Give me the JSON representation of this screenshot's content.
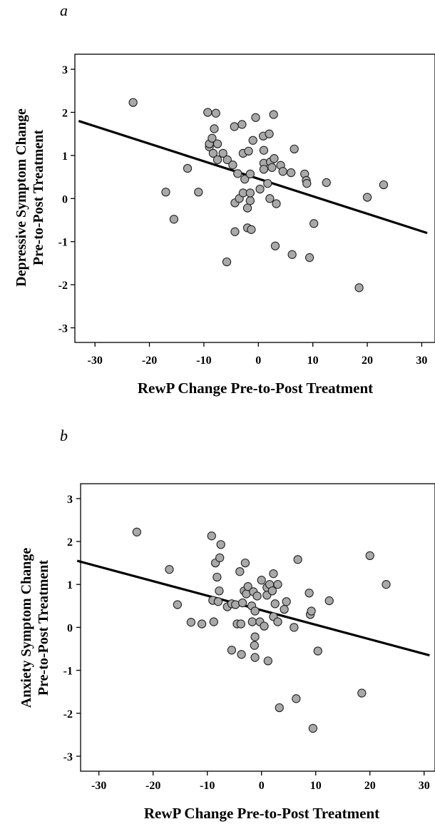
{
  "chart_data": [
    {
      "type": "scatter",
      "panel_label": "a",
      "xlabel": "RewP Change Pre-to-Post Treatment",
      "ylabel_line1": "Depressive Symptom Change",
      "ylabel_line2": "Pre-to-Post Treatment",
      "xlim": [
        -33,
        31
      ],
      "ylim": [
        -3.3,
        3.3
      ],
      "x_ticks": [
        -30,
        -20,
        -10,
        0,
        10,
        20,
        30
      ],
      "y_ticks": [
        3,
        2,
        1,
        0,
        -1,
        -2,
        -3
      ],
      "fit_line": {
        "y_at_xmin": 1.8,
        "y_at_xmax": -0.8
      },
      "points": [
        {
          "x": -23,
          "y": 2.23
        },
        {
          "x": -17,
          "y": 0.15
        },
        {
          "x": -15.5,
          "y": -0.48
        },
        {
          "x": -13,
          "y": 0.7
        },
        {
          "x": -11,
          "y": 0.15
        },
        {
          "x": -9.3,
          "y": 2.0
        },
        {
          "x": -9,
          "y": 1.2
        },
        {
          "x": -9,
          "y": 1.27
        },
        {
          "x": -8.5,
          "y": 1.4
        },
        {
          "x": -8.3,
          "y": 1.05
        },
        {
          "x": -8.1,
          "y": 1.62
        },
        {
          "x": -7.8,
          "y": 1.98
        },
        {
          "x": -7.5,
          "y": 1.27
        },
        {
          "x": -7.5,
          "y": 0.9
        },
        {
          "x": -6.5,
          "y": 1.05
        },
        {
          "x": -5.7,
          "y": 0.9
        },
        {
          "x": -5.8,
          "y": -1.47
        },
        {
          "x": -4.7,
          "y": 0.78
        },
        {
          "x": -4.4,
          "y": 1.67
        },
        {
          "x": -4.3,
          "y": -0.1
        },
        {
          "x": -4.3,
          "y": -0.77
        },
        {
          "x": -3.8,
          "y": 0.58
        },
        {
          "x": -3.5,
          "y": 0.0
        },
        {
          "x": -3.0,
          "y": 1.72
        },
        {
          "x": -2.8,
          "y": 1.05
        },
        {
          "x": -2.8,
          "y": 0.13
        },
        {
          "x": -2.5,
          "y": 0.45
        },
        {
          "x": -2.0,
          "y": -0.22
        },
        {
          "x": -2.0,
          "y": -0.68
        },
        {
          "x": -1.8,
          "y": 1.1
        },
        {
          "x": -1.5,
          "y": -0.05
        },
        {
          "x": -1.5,
          "y": 0.57
        },
        {
          "x": -1.5,
          "y": 0.13
        },
        {
          "x": -1.3,
          "y": -0.72
        },
        {
          "x": -1.0,
          "y": 1.35
        },
        {
          "x": -0.5,
          "y": 1.88
        },
        {
          "x": 0.3,
          "y": 0.22
        },
        {
          "x": 0.9,
          "y": 1.45
        },
        {
          "x": 1.0,
          "y": 0.82
        },
        {
          "x": 1.0,
          "y": 1.12
        },
        {
          "x": 1.0,
          "y": 0.68
        },
        {
          "x": 1.7,
          "y": 0.35
        },
        {
          "x": 2.0,
          "y": 1.5
        },
        {
          "x": 2.1,
          "y": 0.0
        },
        {
          "x": 2.2,
          "y": 0.85
        },
        {
          "x": 2.5,
          "y": 0.72
        },
        {
          "x": 2.8,
          "y": 1.95
        },
        {
          "x": 2.9,
          "y": 0.93
        },
        {
          "x": 3.1,
          "y": -1.1
        },
        {
          "x": 3.3,
          "y": -0.12
        },
        {
          "x": 4.1,
          "y": 0.77
        },
        {
          "x": 4.5,
          "y": 0.63
        },
        {
          "x": 6.0,
          "y": 0.6
        },
        {
          "x": 6.2,
          "y": -1.3
        },
        {
          "x": 6.6,
          "y": 1.15
        },
        {
          "x": 8.5,
          "y": 0.57
        },
        {
          "x": 8.8,
          "y": 0.42
        },
        {
          "x": 8.9,
          "y": 0.35
        },
        {
          "x": 9.4,
          "y": -1.37
        },
        {
          "x": 10.2,
          "y": -0.58
        },
        {
          "x": 12.5,
          "y": 0.37
        },
        {
          "x": 18.5,
          "y": -2.07
        },
        {
          "x": 20.0,
          "y": 0.03
        },
        {
          "x": 23.0,
          "y": 0.32
        }
      ]
    },
    {
      "type": "scatter",
      "panel_label": "b",
      "xlabel": "RewP Change Pre-to-Post Treatment",
      "ylabel_line1": "Anxiety Symptom Change",
      "ylabel_line2": "Pre-to-Post Treatment",
      "xlim": [
        -34,
        31
      ],
      "ylim": [
        -3.3,
        3.3
      ],
      "x_ticks": [
        -30,
        -20,
        -10,
        0,
        10,
        20,
        30
      ],
      "y_ticks": [
        3,
        2,
        1,
        0,
        -1,
        -2,
        -3
      ],
      "fit_line": {
        "y_at_xmin": 1.55,
        "y_at_xmax": -0.65
      },
      "points": [
        {
          "x": -23,
          "y": 2.22
        },
        {
          "x": -17,
          "y": 1.35
        },
        {
          "x": -15.5,
          "y": 0.53
        },
        {
          "x": -13,
          "y": 0.12
        },
        {
          "x": -11,
          "y": 0.08
        },
        {
          "x": -9.2,
          "y": 2.13
        },
        {
          "x": -9,
          "y": 0.63
        },
        {
          "x": -8.8,
          "y": 0.13
        },
        {
          "x": -8.5,
          "y": 1.5
        },
        {
          "x": -8.2,
          "y": 1.17
        },
        {
          "x": -8.0,
          "y": 0.6
        },
        {
          "x": -7.7,
          "y": 1.62
        },
        {
          "x": -7.5,
          "y": 1.93
        },
        {
          "x": -7.8,
          "y": 0.85
        },
        {
          "x": -6.3,
          "y": 0.48
        },
        {
          "x": -5.5,
          "y": 0.55
        },
        {
          "x": -5.5,
          "y": -0.53
        },
        {
          "x": -4.8,
          "y": 0.53
        },
        {
          "x": -4.5,
          "y": 0.08
        },
        {
          "x": -4.0,
          "y": 1.3
        },
        {
          "x": -3.8,
          "y": 0.08
        },
        {
          "x": -3.7,
          "y": -0.63
        },
        {
          "x": -3.5,
          "y": 0.57
        },
        {
          "x": -3.2,
          "y": 0.85
        },
        {
          "x": -3.0,
          "y": 1.5
        },
        {
          "x": -2.8,
          "y": 0.78
        },
        {
          "x": -2.5,
          "y": 0.95
        },
        {
          "x": -1.8,
          "y": 0.5
        },
        {
          "x": -1.7,
          "y": 0.13
        },
        {
          "x": -1.5,
          "y": 0.83
        },
        {
          "x": -1.3,
          "y": -0.42
        },
        {
          "x": -1.2,
          "y": 0.38
        },
        {
          "x": -1.2,
          "y": -0.22
        },
        {
          "x": -1.2,
          "y": -0.7
        },
        {
          "x": -0.8,
          "y": 0.73
        },
        {
          "x": -0.3,
          "y": 0.13
        },
        {
          "x": 0.0,
          "y": 1.1
        },
        {
          "x": 0.5,
          "y": 0.03
        },
        {
          "x": 1.0,
          "y": 0.75
        },
        {
          "x": 1.0,
          "y": 0.93
        },
        {
          "x": 1.2,
          "y": -0.78
        },
        {
          "x": 1.5,
          "y": 1.0
        },
        {
          "x": 2.0,
          "y": 0.85
        },
        {
          "x": 2.2,
          "y": 1.25
        },
        {
          "x": 2.2,
          "y": 0.25
        },
        {
          "x": 2.5,
          "y": 0.55
        },
        {
          "x": 3.0,
          "y": 1.0
        },
        {
          "x": 3.0,
          "y": 0.13
        },
        {
          "x": 3.3,
          "y": -1.87
        },
        {
          "x": 4.2,
          "y": 0.42
        },
        {
          "x": 4.6,
          "y": 0.6
        },
        {
          "x": 6.0,
          "y": 0.0
        },
        {
          "x": 6.4,
          "y": -1.66
        },
        {
          "x": 6.7,
          "y": 1.58
        },
        {
          "x": 8.8,
          "y": 0.8
        },
        {
          "x": 9.0,
          "y": 0.3
        },
        {
          "x": 9.2,
          "y": 0.38
        },
        {
          "x": 9.5,
          "y": -2.35
        },
        {
          "x": 10.4,
          "y": -0.55
        },
        {
          "x": 12.5,
          "y": 0.62
        },
        {
          "x": 18.5,
          "y": -1.53
        },
        {
          "x": 20.0,
          "y": 1.67
        },
        {
          "x": 23.0,
          "y": 1.0
        }
      ]
    }
  ]
}
